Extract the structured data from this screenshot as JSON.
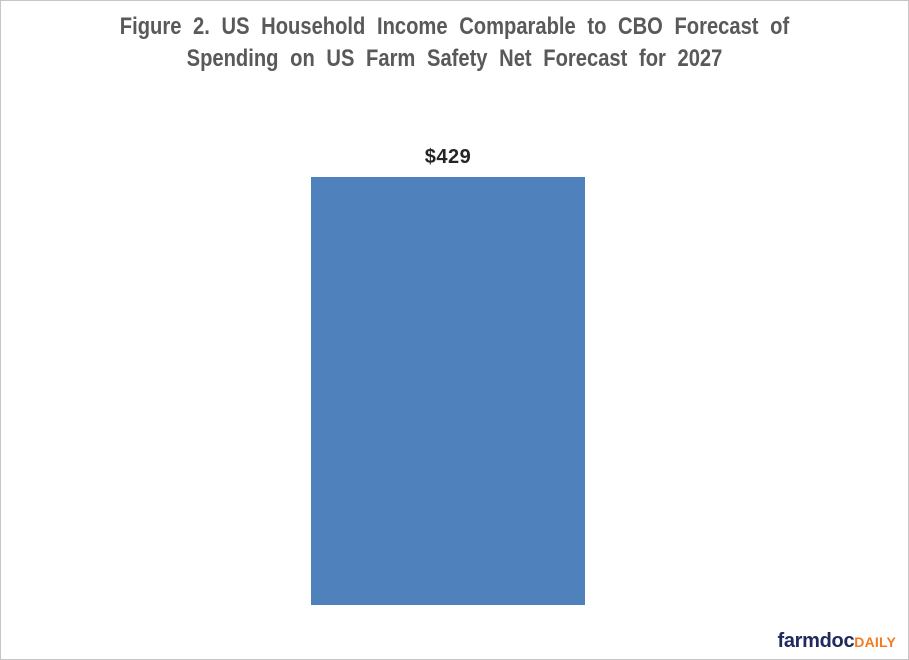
{
  "figure": {
    "title_line1": "Figure 2. US Household Income Comparable to CBO Forecast of",
    "title_line2": "Spending on US Farm Safety Net Forecast for 2027",
    "bar_label": "$429"
  },
  "logo": {
    "brand": "farmdoc",
    "suffix": "DAILY"
  },
  "colors": {
    "bar_fill": "#4F81BD",
    "title_text": "#595959",
    "bar_label_text": "#262626",
    "logo_brand": "#212A5C",
    "logo_suffix": "#F47B20",
    "frame_border": "#C6C6C6",
    "background": "#FFFFFF"
  },
  "chart_data": {
    "type": "bar",
    "categories": [
      ""
    ],
    "values": [
      429
    ],
    "data_labels": [
      "$429"
    ],
    "title": "Figure 2. US Household Income Comparable to CBO Forecast of Spending on US Farm Safety Net Forecast for 2027",
    "xlabel": "",
    "ylabel": "",
    "ylim": [
      0,
      450
    ],
    "grid": false,
    "legend": false,
    "axes_visible": false,
    "bar_color": "#4F81BD"
  }
}
